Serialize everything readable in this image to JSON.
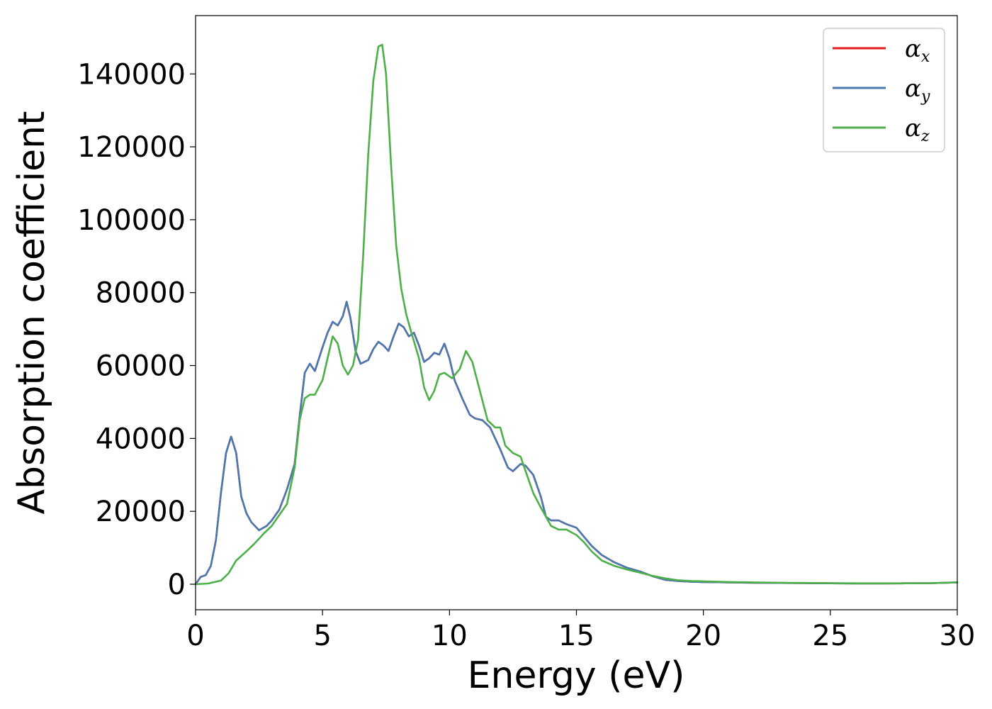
{
  "chart_data": {
    "type": "line",
    "xlabel": "Energy (eV)",
    "ylabel": "Absorption coefficient",
    "xlim": [
      0,
      30
    ],
    "ylim": [
      -7000,
      156000
    ],
    "xticks": [
      0,
      5,
      10,
      15,
      20,
      25,
      30
    ],
    "xtick_labels": [
      "0",
      "5",
      "10",
      "15",
      "20",
      "25",
      "30"
    ],
    "yticks": [
      0,
      20000,
      40000,
      60000,
      80000,
      100000,
      120000,
      140000
    ],
    "ytick_labels": [
      "0",
      "20000",
      "40000",
      "60000",
      "80000",
      "100000",
      "120000",
      "140000"
    ],
    "grid": false,
    "legend_position": "top-right",
    "legend": [
      {
        "symbol": "α",
        "subscript": "x",
        "color": "#e41a1c"
      },
      {
        "symbol": "α",
        "subscript": "y",
        "color": "#4a78b0"
      },
      {
        "symbol": "α",
        "subscript": "z",
        "color": "#4daf4a"
      }
    ],
    "series": [
      {
        "name": "αx",
        "color": "#e41a1c",
        "x": [
          0,
          0.2,
          0.4,
          0.6,
          0.8,
          1.0,
          1.2,
          1.4,
          1.6,
          1.8,
          2.0,
          2.2,
          2.5,
          2.8,
          3.0,
          3.3,
          3.6,
          3.9,
          4.1,
          4.3,
          4.5,
          4.7,
          5.0,
          5.2,
          5.4,
          5.6,
          5.8,
          5.95,
          6.1,
          6.3,
          6.5,
          6.8,
          7.0,
          7.2,
          7.4,
          7.6,
          7.8,
          8.0,
          8.2,
          8.4,
          8.6,
          8.8,
          9.0,
          9.2,
          9.4,
          9.6,
          9.8,
          10.0,
          10.2,
          10.5,
          10.8,
          11.0,
          11.3,
          11.6,
          12.0,
          12.3,
          12.5,
          12.8,
          13.0,
          13.3,
          13.6,
          13.8,
          14.0,
          14.3,
          14.6,
          15.0,
          15.3,
          15.6,
          16.0,
          16.5,
          17.0,
          17.5,
          18.0,
          18.5,
          19.0,
          19.5,
          20.0,
          21.0,
          22.0,
          23.0,
          24.0,
          25.0,
          26.0,
          27.0,
          28.0,
          29.0,
          30.0
        ],
        "y": [
          0,
          2000,
          2500,
          5000,
          12000,
          25000,
          36000,
          40500,
          36000,
          24000,
          19500,
          17000,
          14800,
          16000,
          17500,
          20500,
          26000,
          33000,
          46000,
          58000,
          60500,
          58500,
          65000,
          69000,
          72000,
          71000,
          73500,
          77500,
          73000,
          64000,
          60500,
          61500,
          64500,
          66500,
          65500,
          64000,
          68000,
          71500,
          70500,
          68000,
          69000,
          65500,
          61000,
          62000,
          63500,
          63000,
          66000,
          62000,
          56000,
          51000,
          46500,
          45500,
          45000,
          43000,
          37000,
          32000,
          31000,
          33000,
          32500,
          30000,
          24000,
          18500,
          17500,
          17500,
          16500,
          15500,
          13000,
          10500,
          8000,
          6000,
          4500,
          3500,
          2200,
          1200,
          900,
          700,
          600,
          500,
          400,
          350,
          300,
          250,
          200,
          200,
          250,
          300,
          500
        ]
      },
      {
        "name": "αy",
        "color": "#4a78b0",
        "x": [
          0,
          0.2,
          0.4,
          0.6,
          0.8,
          1.0,
          1.2,
          1.4,
          1.6,
          1.8,
          2.0,
          2.2,
          2.5,
          2.8,
          3.0,
          3.3,
          3.6,
          3.9,
          4.1,
          4.3,
          4.5,
          4.7,
          5.0,
          5.2,
          5.4,
          5.6,
          5.8,
          5.95,
          6.1,
          6.3,
          6.5,
          6.8,
          7.0,
          7.2,
          7.4,
          7.6,
          7.8,
          8.0,
          8.2,
          8.4,
          8.6,
          8.8,
          9.0,
          9.2,
          9.4,
          9.6,
          9.8,
          10.0,
          10.2,
          10.5,
          10.8,
          11.0,
          11.3,
          11.6,
          12.0,
          12.3,
          12.5,
          12.8,
          13.0,
          13.3,
          13.6,
          13.8,
          14.0,
          14.3,
          14.6,
          15.0,
          15.3,
          15.6,
          16.0,
          16.5,
          17.0,
          17.5,
          18.0,
          18.5,
          19.0,
          19.5,
          20.0,
          21.0,
          22.0,
          23.0,
          24.0,
          25.0,
          26.0,
          27.0,
          28.0,
          29.0,
          30.0
        ],
        "y": [
          0,
          2000,
          2500,
          5000,
          12000,
          25000,
          36000,
          40500,
          36000,
          24000,
          19500,
          17000,
          14800,
          16000,
          17500,
          20500,
          26000,
          33000,
          46000,
          58000,
          60500,
          58500,
          65000,
          69000,
          72000,
          71000,
          73500,
          77500,
          73000,
          64000,
          60500,
          61500,
          64500,
          66500,
          65500,
          64000,
          68000,
          71500,
          70500,
          68000,
          69000,
          65500,
          61000,
          62000,
          63500,
          63000,
          66000,
          62000,
          56000,
          51000,
          46500,
          45500,
          45000,
          43000,
          37000,
          32000,
          31000,
          33000,
          32500,
          30000,
          24000,
          18500,
          17500,
          17500,
          16500,
          15500,
          13000,
          10500,
          8000,
          6000,
          4500,
          3500,
          2200,
          1200,
          900,
          700,
          600,
          500,
          400,
          350,
          300,
          250,
          200,
          200,
          250,
          300,
          500
        ]
      },
      {
        "name": "αz",
        "color": "#4daf4a",
        "x": [
          0,
          0.5,
          1.0,
          1.3,
          1.6,
          2.0,
          2.3,
          2.7,
          3.0,
          3.3,
          3.6,
          3.9,
          4.1,
          4.3,
          4.5,
          4.7,
          5.0,
          5.2,
          5.4,
          5.6,
          5.8,
          6.0,
          6.2,
          6.4,
          6.6,
          6.8,
          7.0,
          7.2,
          7.35,
          7.5,
          7.7,
          7.9,
          8.1,
          8.3,
          8.5,
          8.8,
          9.0,
          9.2,
          9.4,
          9.6,
          9.8,
          10.1,
          10.4,
          10.65,
          10.9,
          11.2,
          11.5,
          11.8,
          12.0,
          12.2,
          12.5,
          12.8,
          13.0,
          13.3,
          13.6,
          14.0,
          14.3,
          14.6,
          15.0,
          15.3,
          15.6,
          16.0,
          16.5,
          17.0,
          17.5,
          18.0,
          18.5,
          19.0,
          19.5,
          20.0,
          21.0,
          22.0,
          23.0,
          24.0,
          25.0,
          26.0,
          27.0,
          28.0,
          29.0,
          30.0
        ],
        "y": [
          0,
          200,
          1000,
          3000,
          6500,
          9000,
          11000,
          14000,
          16000,
          19000,
          22000,
          32000,
          45000,
          51000,
          52000,
          52000,
          56000,
          62000,
          68000,
          66000,
          60000,
          57500,
          60000,
          67000,
          90000,
          118000,
          138000,
          147500,
          148000,
          140000,
          115000,
          93000,
          81000,
          74000,
          69000,
          62000,
          54000,
          50500,
          53000,
          57500,
          58000,
          56500,
          59000,
          64000,
          61000,
          53000,
          45000,
          43000,
          43000,
          38000,
          36000,
          35000,
          31000,
          25000,
          21000,
          16000,
          15000,
          15000,
          13500,
          11500,
          9000,
          6500,
          5000,
          4000,
          3200,
          2300,
          1600,
          1100,
          900,
          800,
          600,
          500,
          400,
          350,
          300,
          250,
          250,
          250,
          300,
          500
        ]
      }
    ]
  }
}
